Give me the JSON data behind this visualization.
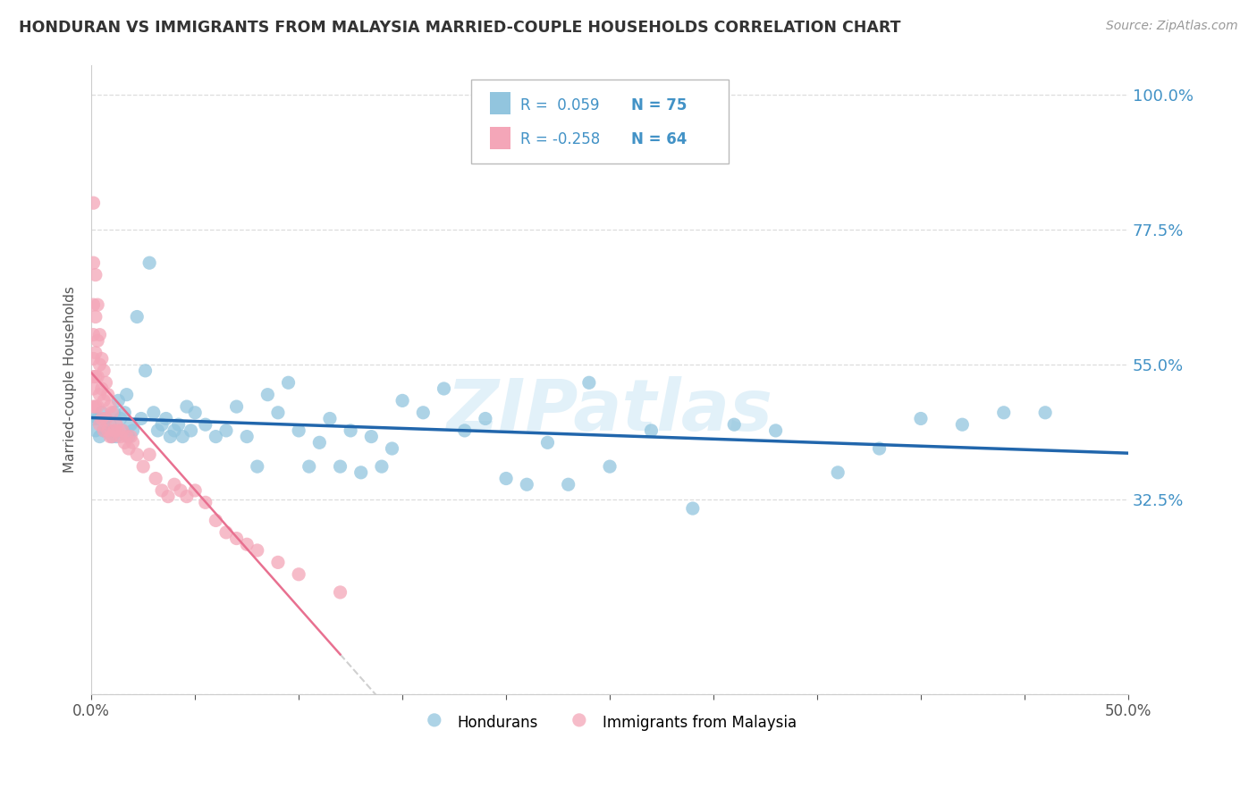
{
  "title": "HONDURAN VS IMMIGRANTS FROM MALAYSIA MARRIED-COUPLE HOUSEHOLDS CORRELATION CHART",
  "source": "Source: ZipAtlas.com",
  "ylabel": "Married-couple Households",
  "yticks": [
    0.0,
    0.325,
    0.55,
    0.775,
    1.0
  ],
  "ytick_labels": [
    "",
    "32.5%",
    "55.0%",
    "77.5%",
    "100.0%"
  ],
  "xlim": [
    0.0,
    0.5
  ],
  "ylim": [
    0.0,
    1.05
  ],
  "r_honduran": 0.059,
  "n_honduran": 75,
  "r_malaysia": -0.258,
  "n_malaysia": 64,
  "legend_label_1": "Hondurans",
  "legend_label_2": "Immigrants from Malaysia",
  "blue_color": "#92c5de",
  "pink_color": "#f4a6b8",
  "blue_line_color": "#2166ac",
  "gray_dash_color": "#d0d0d0",
  "title_color": "#333333",
  "axis_label_color": "#4292c6",
  "honduran_x": [
    0.001,
    0.002,
    0.003,
    0.004,
    0.005,
    0.006,
    0.007,
    0.008,
    0.009,
    0.01,
    0.011,
    0.012,
    0.013,
    0.014,
    0.015,
    0.016,
    0.017,
    0.018,
    0.019,
    0.02,
    0.022,
    0.024,
    0.026,
    0.028,
    0.03,
    0.032,
    0.034,
    0.036,
    0.038,
    0.04,
    0.042,
    0.044,
    0.046,
    0.048,
    0.05,
    0.055,
    0.06,
    0.065,
    0.07,
    0.075,
    0.08,
    0.085,
    0.09,
    0.095,
    0.1,
    0.105,
    0.11,
    0.115,
    0.12,
    0.125,
    0.13,
    0.135,
    0.14,
    0.145,
    0.15,
    0.16,
    0.17,
    0.18,
    0.19,
    0.2,
    0.21,
    0.22,
    0.23,
    0.24,
    0.25,
    0.27,
    0.29,
    0.31,
    0.33,
    0.36,
    0.38,
    0.4,
    0.42,
    0.44,
    0.46
  ],
  "honduran_y": [
    0.46,
    0.44,
    0.46,
    0.43,
    0.47,
    0.44,
    0.46,
    0.44,
    0.45,
    0.43,
    0.47,
    0.43,
    0.49,
    0.46,
    0.44,
    0.47,
    0.5,
    0.43,
    0.45,
    0.44,
    0.63,
    0.46,
    0.54,
    0.72,
    0.47,
    0.44,
    0.45,
    0.46,
    0.43,
    0.44,
    0.45,
    0.43,
    0.48,
    0.44,
    0.47,
    0.45,
    0.43,
    0.44,
    0.48,
    0.43,
    0.38,
    0.5,
    0.47,
    0.52,
    0.44,
    0.38,
    0.42,
    0.46,
    0.38,
    0.44,
    0.37,
    0.43,
    0.38,
    0.41,
    0.49,
    0.47,
    0.51,
    0.44,
    0.46,
    0.36,
    0.35,
    0.42,
    0.35,
    0.52,
    0.38,
    0.44,
    0.31,
    0.45,
    0.44,
    0.37,
    0.41,
    0.46,
    0.45,
    0.47,
    0.47
  ],
  "malaysia_x": [
    0.001,
    0.001,
    0.001,
    0.001,
    0.001,
    0.001,
    0.001,
    0.001,
    0.002,
    0.002,
    0.002,
    0.002,
    0.002,
    0.003,
    0.003,
    0.003,
    0.003,
    0.004,
    0.004,
    0.004,
    0.004,
    0.005,
    0.005,
    0.005,
    0.006,
    0.006,
    0.006,
    0.007,
    0.007,
    0.008,
    0.008,
    0.009,
    0.009,
    0.01,
    0.01,
    0.011,
    0.012,
    0.013,
    0.014,
    0.015,
    0.016,
    0.017,
    0.018,
    0.019,
    0.02,
    0.022,
    0.025,
    0.028,
    0.031,
    0.034,
    0.037,
    0.04,
    0.043,
    0.046,
    0.05,
    0.055,
    0.06,
    0.065,
    0.07,
    0.075,
    0.08,
    0.09,
    0.1,
    0.12
  ],
  "malaysia_y": [
    0.82,
    0.72,
    0.65,
    0.6,
    0.56,
    0.53,
    0.51,
    0.48,
    0.7,
    0.63,
    0.57,
    0.53,
    0.48,
    0.65,
    0.59,
    0.53,
    0.48,
    0.6,
    0.55,
    0.5,
    0.45,
    0.56,
    0.51,
    0.46,
    0.54,
    0.49,
    0.44,
    0.52,
    0.46,
    0.5,
    0.44,
    0.48,
    0.43,
    0.47,
    0.43,
    0.44,
    0.45,
    0.44,
    0.43,
    0.44,
    0.42,
    0.43,
    0.41,
    0.43,
    0.42,
    0.4,
    0.38,
    0.4,
    0.36,
    0.34,
    0.33,
    0.35,
    0.34,
    0.33,
    0.34,
    0.32,
    0.29,
    0.27,
    0.26,
    0.25,
    0.24,
    0.22,
    0.2,
    0.17
  ]
}
